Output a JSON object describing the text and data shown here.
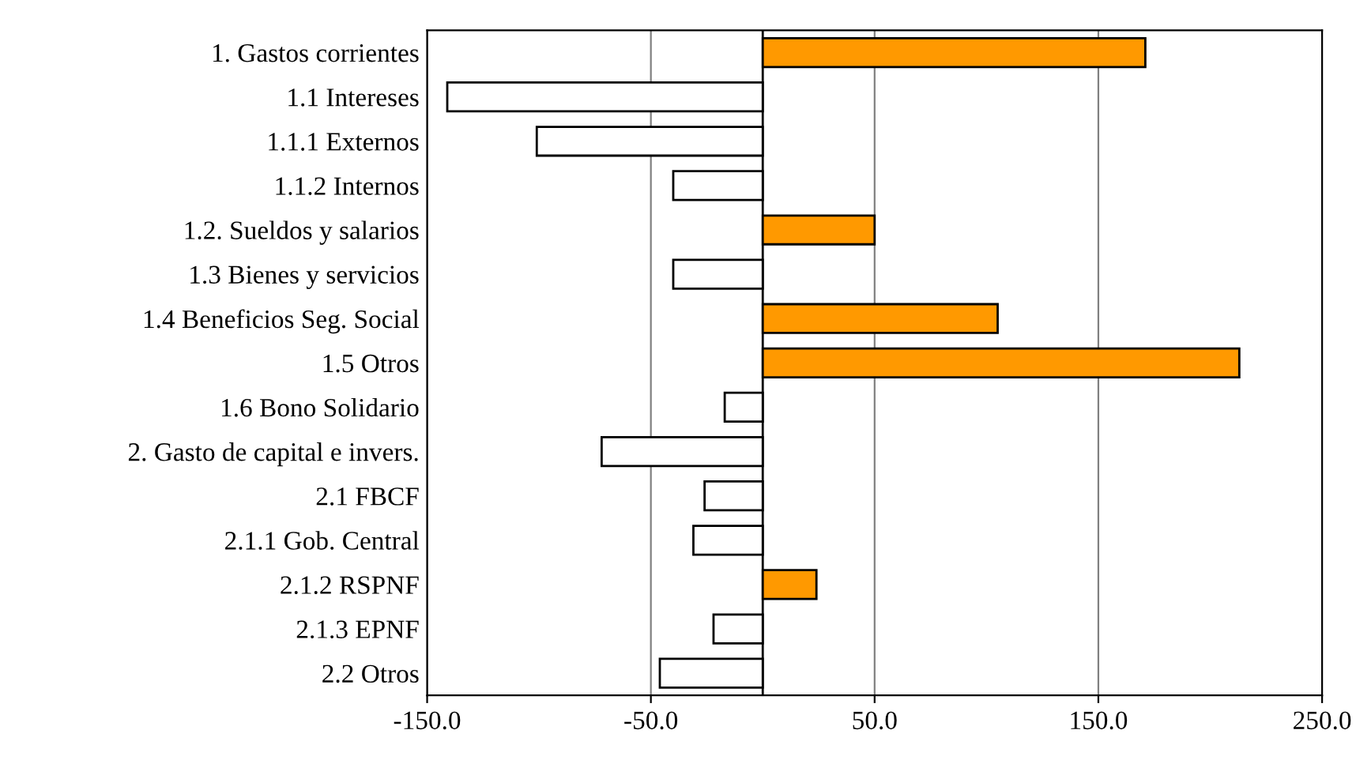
{
  "chart_data": {
    "type": "bar",
    "orientation": "horizontal",
    "categories": [
      "1. Gastos corrientes",
      "1.1 Intereses",
      "1.1.1 Externos",
      "1.1.2 Internos",
      "1.2. Sueldos y salarios",
      "1.3 Bienes y servicios",
      "1.4 Beneficios Seg. Social",
      "1.5 Otros",
      "1.6 Bono Solidario",
      "2. Gasto de capital e invers.",
      "2.1 FBCF",
      "2.1.1 Gob. Central",
      "2.1.2 RSPNF",
      "2.1.3 EPNF",
      "2.2 Otros"
    ],
    "values": [
      171,
      -141,
      -101,
      -40,
      50,
      -40,
      105,
      213,
      -17,
      -72,
      -26,
      -31,
      24,
      -22,
      -46
    ],
    "colors": [
      "#ff9900",
      "#ffffff",
      "#ffffff",
      "#ffffff",
      "#ff9900",
      "#ffffff",
      "#ff9900",
      "#ff9900",
      "#ffffff",
      "#ffffff",
      "#ffffff",
      "#ffffff",
      "#ff9900",
      "#ffffff",
      "#ffffff"
    ],
    "xlim": [
      -150,
      250
    ],
    "xticks": [
      {
        "value": -150,
        "label": "-150.0"
      },
      {
        "value": -50,
        "label": "-50.0"
      },
      {
        "value": 50,
        "label": "50.0"
      },
      {
        "value": 150,
        "label": "150.0"
      },
      {
        "value": 250,
        "label": "250.0"
      }
    ],
    "grid": "x"
  }
}
